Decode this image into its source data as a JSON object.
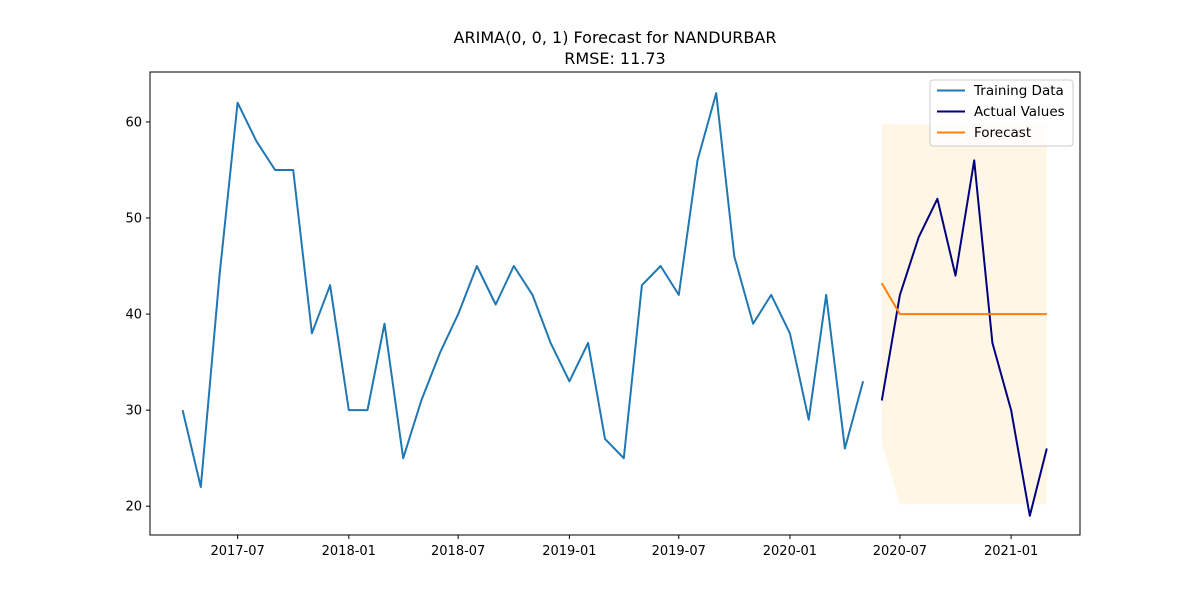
{
  "chart_data": {
    "type": "line",
    "title": "ARIMA(0, 0, 1) Forecast for NANDURBAR",
    "subtitle": "RMSE: 11.73",
    "xlabel": "",
    "ylabel": "",
    "xlim": [
      "2017-02-06",
      "2021-04-25"
    ],
    "ylim": [
      17,
      65.2
    ],
    "x_ticks": [
      "2017-07",
      "2018-01",
      "2018-07",
      "2019-01",
      "2019-07",
      "2020-01",
      "2020-07",
      "2021-01"
    ],
    "y_ticks": [
      20,
      30,
      40,
      50,
      60
    ],
    "grid": false,
    "legend": {
      "position": "top-right",
      "entries": [
        "Training Data",
        "Actual Values",
        "Forecast"
      ]
    },
    "series": [
      {
        "name": "Training Data",
        "color": "#1f77b4",
        "x": [
          "2017-04-01",
          "2017-05-01",
          "2017-06-01",
          "2017-07-01",
          "2017-08-01",
          "2017-09-01",
          "2017-10-01",
          "2017-11-01",
          "2017-12-01",
          "2018-01-01",
          "2018-02-01",
          "2018-03-01",
          "2018-04-01",
          "2018-05-01",
          "2018-06-01",
          "2018-07-01",
          "2018-08-01",
          "2018-09-01",
          "2018-10-01",
          "2018-11-01",
          "2018-12-01",
          "2019-01-01",
          "2019-02-01",
          "2019-03-01",
          "2019-04-01",
          "2019-05-01",
          "2019-06-01",
          "2019-07-01",
          "2019-08-01",
          "2019-09-01",
          "2019-10-01",
          "2019-11-01",
          "2019-12-01",
          "2020-01-01",
          "2020-02-01",
          "2020-03-01",
          "2020-04-01",
          "2020-05-01"
        ],
        "values": [
          30,
          22,
          44,
          62,
          58,
          55,
          55,
          38,
          43,
          30,
          30,
          39,
          25,
          31,
          36,
          40,
          45,
          41,
          45,
          42,
          37,
          33,
          37,
          27,
          25,
          43,
          45,
          42,
          56,
          63,
          46,
          39,
          42,
          38,
          29,
          42,
          26,
          33
        ]
      },
      {
        "name": "Actual Values",
        "color": "#000080",
        "x": [
          "2020-06-01",
          "2020-07-01",
          "2020-08-01",
          "2020-09-01",
          "2020-10-01",
          "2020-11-01",
          "2020-12-01",
          "2021-01-01",
          "2021-02-01",
          "2021-03-01"
        ],
        "values": [
          31,
          42,
          48,
          52,
          44,
          56,
          37,
          30,
          19,
          26
        ]
      },
      {
        "name": "Forecast",
        "color": "#ff7f0e",
        "x": [
          "2020-06-01",
          "2020-07-01",
          "2020-08-01",
          "2020-09-01",
          "2020-10-01",
          "2020-11-01",
          "2020-12-01",
          "2021-01-01",
          "2021-02-01",
          "2021-03-01"
        ],
        "values": [
          43.2,
          40,
          40,
          40,
          40,
          40,
          40,
          40,
          40,
          40
        ]
      }
    ],
    "confidence_band": {
      "color": "#ffa500",
      "x": [
        "2020-06-01",
        "2020-07-01",
        "2020-08-01",
        "2020-09-01",
        "2020-10-01",
        "2020-11-01",
        "2020-12-01",
        "2021-01-01",
        "2021-02-01",
        "2021-03-01"
      ],
      "lower": [
        26.6,
        20.2,
        20.2,
        20.2,
        20.2,
        20.2,
        20.2,
        20.2,
        20.2,
        20.2
      ],
      "upper": [
        59.8,
        59.7,
        59.7,
        59.7,
        59.7,
        59.7,
        59.7,
        59.7,
        59.7,
        59.7
      ]
    }
  }
}
